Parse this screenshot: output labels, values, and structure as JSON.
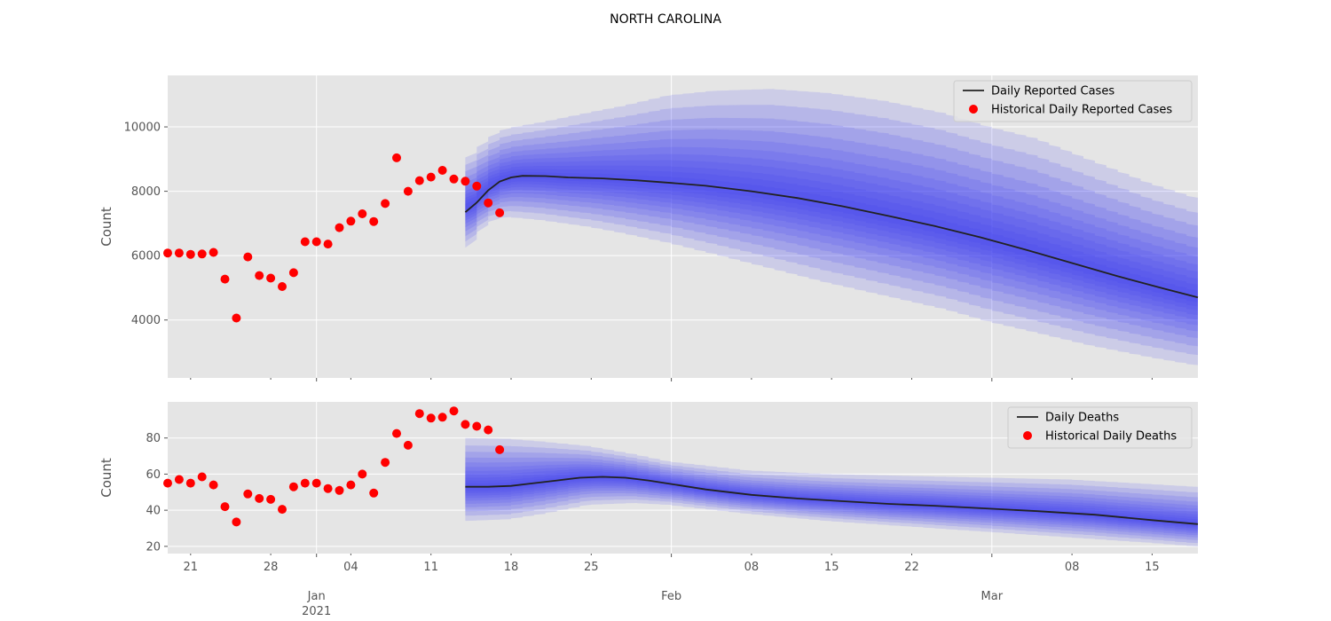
{
  "chart_data": {
    "title": "NORTH CAROLINA",
    "x_axis": {
      "range": [
        "2020-12-19",
        "2021-03-19"
      ],
      "ticks": [
        {
          "date": "2020-12-21",
          "label": "21"
        },
        {
          "date": "2020-12-28",
          "label": "28"
        },
        {
          "date": "2021-01-01",
          "label": "Jan",
          "sublabel": "2021",
          "major": true
        },
        {
          "date": "2021-01-04",
          "label": "04"
        },
        {
          "date": "2021-01-11",
          "label": "11"
        },
        {
          "date": "2021-01-18",
          "label": "18"
        },
        {
          "date": "2021-01-25",
          "label": "25"
        },
        {
          "date": "2021-02-01",
          "label": "Feb",
          "major": true
        },
        {
          "date": "2021-02-08",
          "label": "08"
        },
        {
          "date": "2021-02-15",
          "label": "15"
        },
        {
          "date": "2021-02-22",
          "label": "22"
        },
        {
          "date": "2021-03-01",
          "label": "Mar",
          "major": true
        },
        {
          "date": "2021-03-08",
          "label": "08"
        },
        {
          "date": "2021-03-15",
          "label": "15"
        }
      ]
    },
    "panels": [
      {
        "type": "line",
        "ylabel": "Count",
        "ylim": [
          2200,
          11600
        ],
        "yticks": [
          4000,
          6000,
          8000,
          10000
        ],
        "grid": true,
        "legend_position": "top-right",
        "line_series": {
          "name": "Daily Reported Cases",
          "color": "#222222",
          "points": [
            [
              "2021-01-14",
              7350
            ],
            [
              "2021-01-15",
              7650
            ],
            [
              "2021-01-16",
              8030
            ],
            [
              "2021-01-17",
              8300
            ],
            [
              "2021-01-18",
              8430
            ],
            [
              "2021-01-19",
              8480
            ],
            [
              "2021-01-21",
              8470
            ],
            [
              "2021-01-23",
              8430
            ],
            [
              "2021-01-26",
              8400
            ],
            [
              "2021-01-29",
              8340
            ],
            [
              "2021-02-01",
              8260
            ],
            [
              "2021-02-04",
              8170
            ],
            [
              "2021-02-08",
              8000
            ],
            [
              "2021-02-12",
              7790
            ],
            [
              "2021-02-16",
              7530
            ],
            [
              "2021-02-20",
              7230
            ],
            [
              "2021-02-24",
              6920
            ],
            [
              "2021-02-28",
              6570
            ],
            [
              "2021-03-04",
              6180
            ],
            [
              "2021-03-08",
              5770
            ],
            [
              "2021-03-12",
              5360
            ],
            [
              "2021-03-16",
              4980
            ],
            [
              "2021-03-19",
              4700
            ]
          ]
        },
        "uncertainty_band": {
          "color": "#3a3af0",
          "points": [
            {
              "date": "2021-01-14",
              "lower": 6000,
              "upper": 8900
            },
            {
              "date": "2021-01-15",
              "lower": 6500,
              "upper": 9200
            },
            {
              "date": "2021-01-16",
              "lower": 6950,
              "upper": 9550
            },
            {
              "date": "2021-01-17",
              "lower": 7150,
              "upper": 9820
            },
            {
              "date": "2021-01-18",
              "lower": 7200,
              "upper": 9960
            },
            {
              "date": "2021-01-21",
              "lower": 7100,
              "upper": 10150
            },
            {
              "date": "2021-01-25",
              "lower": 6900,
              "upper": 10440
            },
            {
              "date": "2021-01-28",
              "lower": 6700,
              "upper": 10650
            },
            {
              "date": "2021-02-01",
              "lower": 6400,
              "upper": 10980
            },
            {
              "date": "2021-02-05",
              "lower": 6050,
              "upper": 11120
            },
            {
              "date": "2021-02-10",
              "lower": 5600,
              "upper": 11180
            },
            {
              "date": "2021-02-15",
              "lower": 5150,
              "upper": 11050
            },
            {
              "date": "2021-02-20",
              "lower": 4750,
              "upper": 10800
            },
            {
              "date": "2021-02-25",
              "lower": 4350,
              "upper": 10430
            },
            {
              "date": "2021-03-01",
              "lower": 3950,
              "upper": 10000
            },
            {
              "date": "2021-03-05",
              "lower": 3620,
              "upper": 9650
            },
            {
              "date": "2021-03-10",
              "lower": 3200,
              "upper": 8950
            },
            {
              "date": "2021-03-15",
              "lower": 2850,
              "upper": 8250
            },
            {
              "date": "2021-03-19",
              "lower": 2600,
              "upper": 7800
            }
          ]
        },
        "scatter_series": {
          "name": "Historical Daily Reported Cases",
          "color": "#ff0000",
          "points": [
            [
              "2020-12-19",
              6080
            ],
            [
              "2020-12-20",
              6080
            ],
            [
              "2020-12-21",
              6040
            ],
            [
              "2020-12-22",
              6050
            ],
            [
              "2020-12-23",
              6100
            ],
            [
              "2020-12-24",
              5270
            ],
            [
              "2020-12-25",
              4060
            ],
            [
              "2020-12-26",
              5960
            ],
            [
              "2020-12-27",
              5380
            ],
            [
              "2020-12-28",
              5300
            ],
            [
              "2020-12-29",
              5040
            ],
            [
              "2020-12-30",
              5470
            ],
            [
              "2020-12-31",
              6430
            ],
            [
              "2021-01-01",
              6430
            ],
            [
              "2021-01-02",
              6360
            ],
            [
              "2021-01-03",
              6870
            ],
            [
              "2021-01-04",
              7070
            ],
            [
              "2021-01-05",
              7300
            ],
            [
              "2021-01-06",
              7060
            ],
            [
              "2021-01-07",
              7620
            ],
            [
              "2021-01-08",
              9040
            ],
            [
              "2021-01-09",
              8000
            ],
            [
              "2021-01-10",
              8330
            ],
            [
              "2021-01-11",
              8440
            ],
            [
              "2021-01-12",
              8650
            ],
            [
              "2021-01-13",
              8380
            ],
            [
              "2021-01-14",
              8310
            ],
            [
              "2021-01-15",
              8160
            ],
            [
              "2021-01-16",
              7640
            ],
            [
              "2021-01-17",
              7330
            ]
          ]
        }
      },
      {
        "type": "line",
        "ylabel": "Count",
        "ylim": [
          16,
          100
        ],
        "yticks": [
          20,
          40,
          60,
          80
        ],
        "grid": true,
        "legend_position": "top-right",
        "line_series": {
          "name": "Daily Deaths",
          "color": "#222222",
          "points": [
            [
              "2021-01-14",
              53
            ],
            [
              "2021-01-16",
              53
            ],
            [
              "2021-01-18",
              53.5
            ],
            [
              "2021-01-20",
              55
            ],
            [
              "2021-01-22",
              56.5
            ],
            [
              "2021-01-24",
              58
            ],
            [
              "2021-01-26",
              58.5
            ],
            [
              "2021-01-28",
              58
            ],
            [
              "2021-01-30",
              56.5
            ],
            [
              "2021-02-01",
              54.5
            ],
            [
              "2021-02-04",
              51.5
            ],
            [
              "2021-02-08",
              48.5
            ],
            [
              "2021-02-12",
              46.5
            ],
            [
              "2021-02-16",
              45
            ],
            [
              "2021-02-20",
              43.5
            ],
            [
              "2021-02-24",
              42.5
            ],
            [
              "2021-03-01",
              40.8
            ],
            [
              "2021-03-05",
              39.5
            ],
            [
              "2021-03-10",
              37.5
            ],
            [
              "2021-03-15",
              34.5
            ],
            [
              "2021-03-19",
              32.3
            ]
          ]
        },
        "uncertainty_band": {
          "color": "#3a3af0",
          "points": [
            {
              "date": "2021-01-14",
              "lower": 34,
              "upper": 80
            },
            {
              "date": "2021-01-18",
              "lower": 35,
              "upper": 79.5
            },
            {
              "date": "2021-01-21",
              "lower": 38,
              "upper": 78
            },
            {
              "date": "2021-01-25",
              "lower": 43,
              "upper": 75.5
            },
            {
              "date": "2021-01-29",
              "lower": 44,
              "upper": 71
            },
            {
              "date": "2021-02-01",
              "lower": 43,
              "upper": 67
            },
            {
              "date": "2021-02-08",
              "lower": 38,
              "upper": 62
            },
            {
              "date": "2021-02-15",
              "lower": 34,
              "upper": 60
            },
            {
              "date": "2021-02-22",
              "lower": 31,
              "upper": 59
            },
            {
              "date": "2021-03-01",
              "lower": 28,
              "upper": 58
            },
            {
              "date": "2021-03-08",
              "lower": 25,
              "upper": 57
            },
            {
              "date": "2021-03-15",
              "lower": 22,
              "upper": 54.5
            },
            {
              "date": "2021-03-19",
              "lower": 20,
              "upper": 53
            }
          ]
        },
        "scatter_series": {
          "name": "Historical Daily Deaths",
          "color": "#ff0000",
          "points": [
            [
              "2020-12-19",
              55
            ],
            [
              "2020-12-20",
              57
            ],
            [
              "2020-12-21",
              55
            ],
            [
              "2020-12-22",
              58.5
            ],
            [
              "2020-12-23",
              54
            ],
            [
              "2020-12-24",
              42
            ],
            [
              "2020-12-25",
              33.5
            ],
            [
              "2020-12-26",
              49
            ],
            [
              "2020-12-27",
              46.5
            ],
            [
              "2020-12-28",
              46
            ],
            [
              "2020-12-29",
              40.5
            ],
            [
              "2020-12-30",
              53
            ],
            [
              "2020-12-31",
              55
            ],
            [
              "2021-01-01",
              55
            ],
            [
              "2021-01-02",
              52
            ],
            [
              "2021-01-03",
              51
            ],
            [
              "2021-01-04",
              54
            ],
            [
              "2021-01-05",
              60
            ],
            [
              "2021-01-06",
              49.5
            ],
            [
              "2021-01-07",
              66.5
            ],
            [
              "2021-01-08",
              82.5
            ],
            [
              "2021-01-09",
              76
            ],
            [
              "2021-01-10",
              93.5
            ],
            [
              "2021-01-11",
              91
            ],
            [
              "2021-01-12",
              91.5
            ],
            [
              "2021-01-13",
              95
            ],
            [
              "2021-01-14",
              87.5
            ],
            [
              "2021-01-15",
              86.5
            ],
            [
              "2021-01-16",
              84.5
            ],
            [
              "2021-01-17",
              73.5
            ]
          ]
        }
      }
    ]
  }
}
